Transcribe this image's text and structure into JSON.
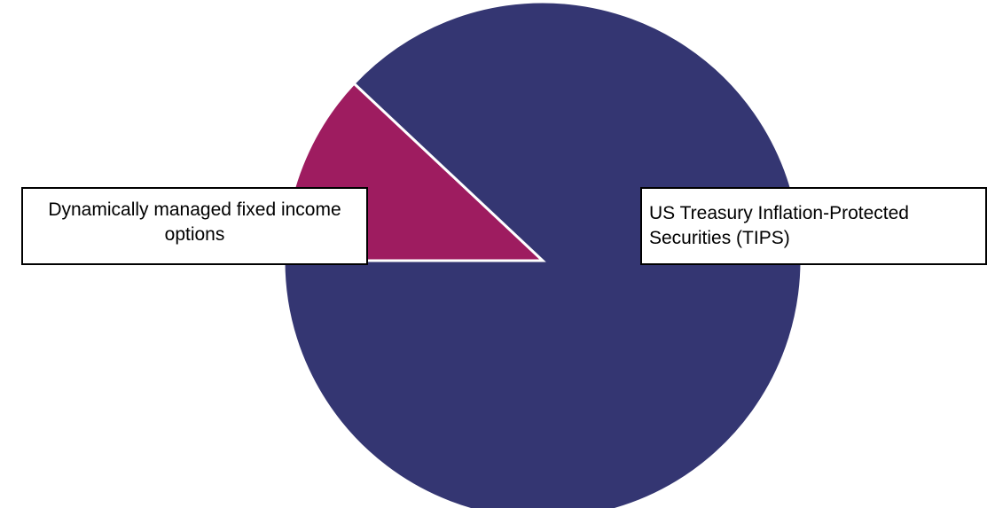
{
  "chart_data": {
    "type": "pie",
    "title": "",
    "slices": [
      {
        "label": "Dynamically managed fixed income options",
        "value": 12,
        "color": "#9e1c60"
      },
      {
        "label": "US Treasury Inflation-Protected Securities (TIPS)",
        "value": 88,
        "color": "#343672"
      }
    ],
    "legend": "none",
    "start_angle_deg": 136.8,
    "slice_border_color": "#ffffff"
  }
}
